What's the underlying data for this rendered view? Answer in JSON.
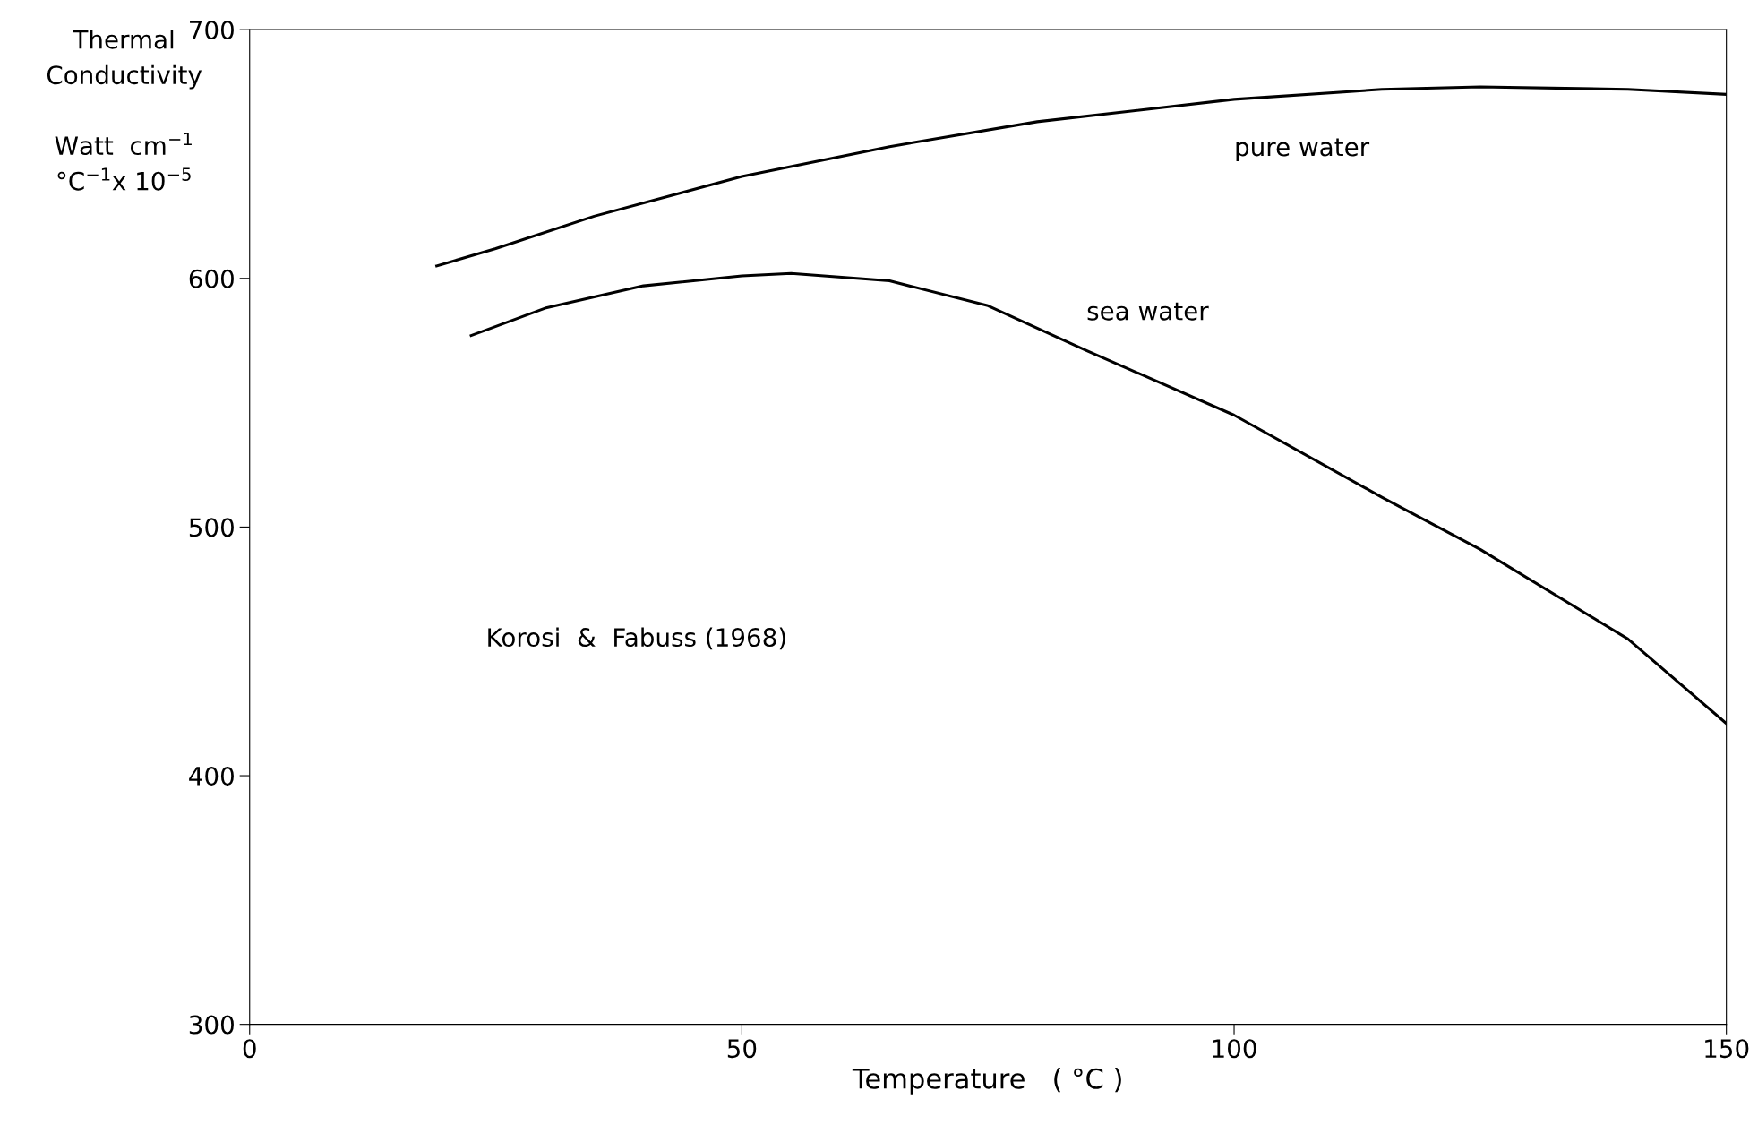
{
  "chart_data": {
    "type": "line",
    "xlabel": "Temperature   ( °C )",
    "ylabel": "Thermal\nConductivity\n\nWatt  cm$^{−1}$\n°C$^{−1}$x 10$^{−5}$",
    "xlim": [
      0,
      150
    ],
    "ylim": [
      300,
      700
    ],
    "xticks": [
      0,
      50,
      100,
      150
    ],
    "yticks": [
      300,
      400,
      500,
      600,
      700
    ],
    "grid": false,
    "legend": false,
    "marker": "none",
    "line_style": "solid",
    "annotations": [
      "Korosi  &  Fabuss (1968)"
    ],
    "series": [
      {
        "name": "pure water",
        "color": "#000000",
        "x": [
          19,
          25,
          35,
          50,
          65,
          80,
          100,
          115,
          125,
          140,
          150
        ],
        "values": [
          605,
          612,
          625,
          641,
          653,
          663,
          672,
          676,
          677,
          676,
          674
        ]
      },
      {
        "name": "sea water",
        "color": "#000000",
        "x": [
          22.5,
          30,
          40,
          50,
          55,
          65,
          75,
          85,
          100,
          115,
          125,
          140,
          150
        ],
        "values": [
          577,
          588,
          597,
          601,
          602,
          599,
          589,
          571,
          545,
          512,
          491,
          455,
          421
        ]
      }
    ]
  }
}
